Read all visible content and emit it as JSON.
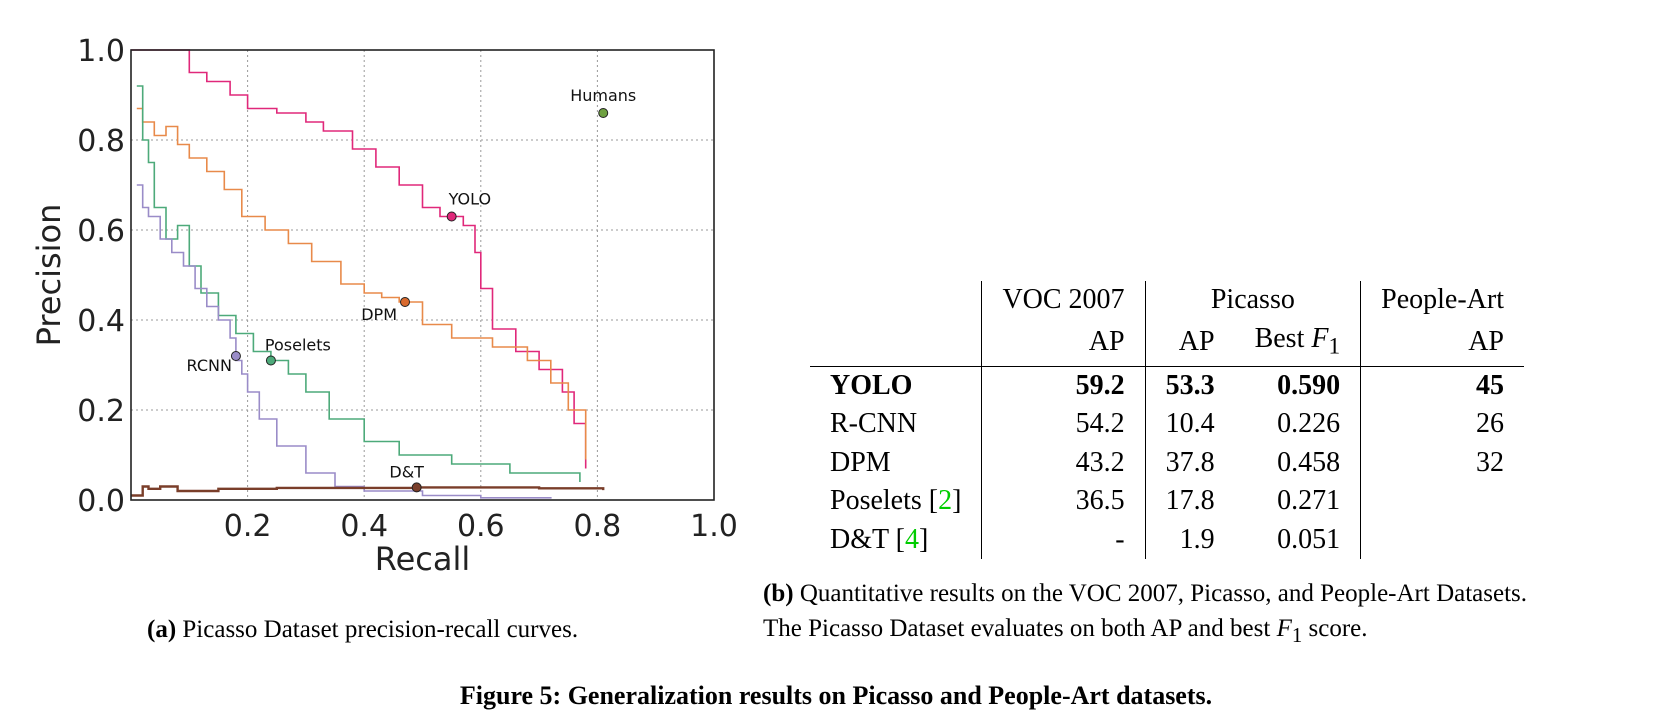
{
  "chart_data": {
    "type": "line",
    "xlabel": "Recall",
    "ylabel": "Precision",
    "xlim": [
      0.0,
      1.0
    ],
    "ylim": [
      0.0,
      1.0
    ],
    "x_ticks": [
      "0.2",
      "0.4",
      "0.6",
      "0.8",
      "1.0"
    ],
    "y_ticks": [
      "0.0",
      "0.2",
      "0.4",
      "0.6",
      "0.8",
      "1.0"
    ],
    "grid": true,
    "series": [
      {
        "name": "YOLO",
        "color": "#e0287a",
        "x": [
          0.0,
          0.09,
          0.1,
          0.13,
          0.17,
          0.2,
          0.25,
          0.3,
          0.33,
          0.38,
          0.42,
          0.46,
          0.5,
          0.53,
          0.55,
          0.57,
          0.59,
          0.6,
          0.62,
          0.66,
          0.7,
          0.74,
          0.76,
          0.78
        ],
        "y": [
          1.0,
          1.0,
          0.95,
          0.93,
          0.9,
          0.87,
          0.86,
          0.84,
          0.82,
          0.78,
          0.74,
          0.7,
          0.65,
          0.63,
          0.63,
          0.61,
          0.55,
          0.47,
          0.38,
          0.33,
          0.29,
          0.24,
          0.17,
          0.07
        ]
      },
      {
        "name": "DPM",
        "color": "#e88a4a",
        "x": [
          0.01,
          0.02,
          0.04,
          0.06,
          0.08,
          0.1,
          0.13,
          0.16,
          0.19,
          0.23,
          0.27,
          0.31,
          0.36,
          0.4,
          0.43,
          0.46,
          0.5,
          0.55,
          0.62,
          0.68,
          0.72,
          0.75,
          0.78
        ],
        "y": [
          0.87,
          0.84,
          0.81,
          0.83,
          0.79,
          0.76,
          0.73,
          0.69,
          0.63,
          0.6,
          0.57,
          0.53,
          0.48,
          0.46,
          0.45,
          0.44,
          0.39,
          0.36,
          0.34,
          0.31,
          0.26,
          0.2,
          0.09
        ]
      },
      {
        "name": "Poselets",
        "color": "#4daa7a",
        "x": [
          0.01,
          0.02,
          0.03,
          0.04,
          0.06,
          0.08,
          0.1,
          0.12,
          0.15,
          0.18,
          0.21,
          0.24,
          0.27,
          0.3,
          0.34,
          0.4,
          0.46,
          0.55,
          0.65,
          0.77
        ],
        "y": [
          0.92,
          0.8,
          0.75,
          0.65,
          0.58,
          0.61,
          0.52,
          0.46,
          0.41,
          0.37,
          0.33,
          0.31,
          0.28,
          0.24,
          0.18,
          0.13,
          0.1,
          0.08,
          0.06,
          0.04
        ]
      },
      {
        "name": "RCNN",
        "color": "#9a8cc8",
        "x": [
          0.01,
          0.02,
          0.03,
          0.05,
          0.07,
          0.09,
          0.11,
          0.13,
          0.15,
          0.17,
          0.18,
          0.19,
          0.2,
          0.22,
          0.25,
          0.3,
          0.35,
          0.4,
          0.5,
          0.6,
          0.72
        ],
        "y": [
          0.7,
          0.65,
          0.63,
          0.58,
          0.55,
          0.52,
          0.47,
          0.43,
          0.4,
          0.36,
          0.31,
          0.28,
          0.24,
          0.18,
          0.12,
          0.06,
          0.03,
          0.02,
          0.01,
          0.005,
          0.003
        ]
      },
      {
        "name": "D&T",
        "color": "#7a3e2a",
        "x": [
          0.0,
          0.02,
          0.03,
          0.05,
          0.08,
          0.15,
          0.25,
          0.4,
          0.49,
          0.6,
          0.7,
          0.81
        ],
        "y": [
          0.01,
          0.03,
          0.025,
          0.03,
          0.02,
          0.025,
          0.027,
          0.027,
          0.028,
          0.028,
          0.026,
          0.022
        ]
      }
    ],
    "annotations": [
      {
        "label": "Humans",
        "x": 0.81,
        "y": 0.86,
        "color": "#6ea040"
      },
      {
        "label": "YOLO",
        "x": 0.55,
        "y": 0.63,
        "color": "#e0287a"
      },
      {
        "label": "DPM",
        "x": 0.47,
        "y": 0.44,
        "color": "#d96a2e"
      },
      {
        "label": "Poselets",
        "x": 0.24,
        "y": 0.31,
        "color": "#4daa7a"
      },
      {
        "label": "RCNN",
        "x": 0.18,
        "y": 0.32,
        "color": "#9a8cc8"
      },
      {
        "label": "D&T",
        "x": 0.49,
        "y": 0.028,
        "color": "#7a3e2a"
      }
    ]
  },
  "caption_a": {
    "tag": "(a)",
    "text": " Picasso Dataset precision-recall curves."
  },
  "caption_b": {
    "tag": "(b)",
    "line1": " Quantitative results on the VOC 2007, Picasso, and People-Art Datasets.",
    "line2_pre": "The Picasso Dataset evaluates on both AP and best ",
    "line2_var": "F",
    "line2_sub": "1",
    "line2_post": " score."
  },
  "figure_caption": "Figure 5: Generalization results on Picasso and People-Art datasets.",
  "table": {
    "header1": {
      "voc": "VOC 2007",
      "picasso": "Picasso",
      "people": "People-Art"
    },
    "header2": {
      "voc_ap": "AP",
      "pic_ap": "AP",
      "pic_f1_pre": "Best ",
      "pic_f1_var": "F",
      "pic_f1_sub": "1",
      "people_ap": "AP"
    },
    "rows": [
      {
        "name": "YOLO",
        "ref": "",
        "voc": "59.2",
        "pic_ap": "53.3",
        "f1": "0.590",
        "people": "45"
      },
      {
        "name": "R-CNN",
        "ref": "",
        "voc": "54.2",
        "pic_ap": "10.4",
        "f1": "0.226",
        "people": "26"
      },
      {
        "name": "DPM",
        "ref": "",
        "voc": "43.2",
        "pic_ap": "37.8",
        "f1": "0.458",
        "people": "32"
      },
      {
        "name": "Poselets ",
        "ref": "2",
        "voc": "36.5",
        "pic_ap": "17.8",
        "f1": "0.271",
        "people": ""
      },
      {
        "name": "D&T ",
        "ref": "4",
        "voc": "-",
        "pic_ap": "1.9",
        "f1": "0.051",
        "people": ""
      }
    ]
  }
}
